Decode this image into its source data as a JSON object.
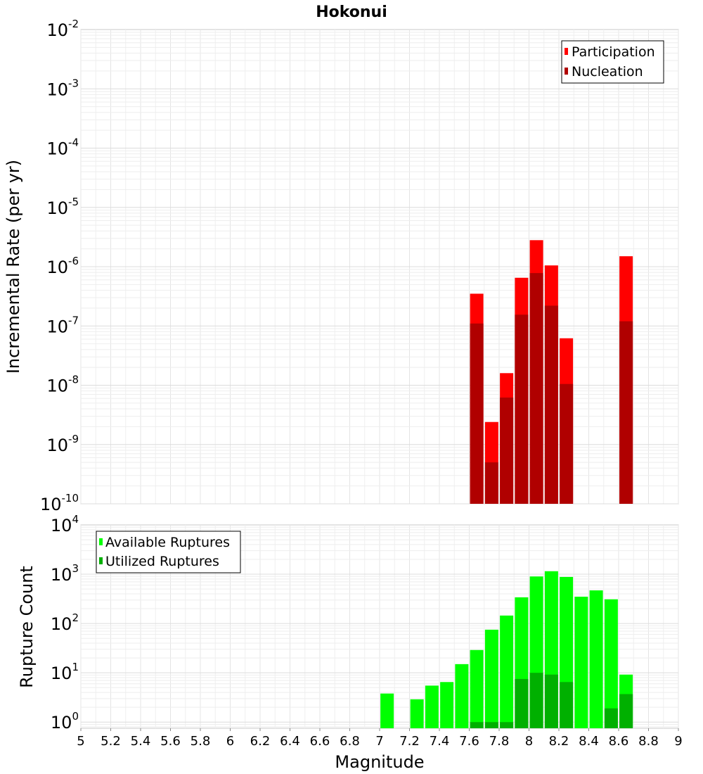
{
  "chart_data": [
    {
      "type": "bar",
      "title": "Hokonui",
      "xlabel": "",
      "ylabel": "Incremental Rate (per yr)",
      "xlim": [
        5,
        9
      ],
      "ylim": [
        1e-10,
        0.01
      ],
      "yscale": "log",
      "grid": true,
      "legend_position": "top-right",
      "y_ticks": [
        {
          "base": "10",
          "exp": "-2"
        },
        {
          "base": "10",
          "exp": "-3"
        },
        {
          "base": "10",
          "exp": "-4"
        },
        {
          "base": "10",
          "exp": "-5"
        },
        {
          "base": "10",
          "exp": "-6"
        },
        {
          "base": "10",
          "exp": "-7"
        },
        {
          "base": "10",
          "exp": "-8"
        },
        {
          "base": "10",
          "exp": "-9"
        },
        {
          "base": "10",
          "exp": "-10"
        }
      ],
      "x": [
        7.65,
        7.75,
        7.85,
        7.95,
        8.05,
        8.15,
        8.25,
        8.65
      ],
      "series": [
        {
          "name": "Participation",
          "color": "#ff0000",
          "values": [
            3.5e-07,
            2.4e-09,
            1.6e-08,
            6.5e-07,
            2.8e-06,
            1.05e-06,
            6.2e-08,
            1.5e-06
          ]
        },
        {
          "name": "Nucleation",
          "color": "#b00000",
          "values": [
            1.1e-07,
            5e-10,
            6.2e-09,
            1.55e-07,
            7.8e-07,
            2.2e-07,
            1.05e-08,
            1.2e-07
          ]
        }
      ]
    },
    {
      "type": "bar",
      "title": "",
      "xlabel": "Magnitude",
      "ylabel": "Rupture Count",
      "xlim": [
        5,
        9
      ],
      "ylim": [
        0.75,
        10000
      ],
      "yscale": "log",
      "grid": true,
      "legend_position": "top-left",
      "y_ticks": [
        {
          "value": 10000,
          "base": "10",
          "exp": "4"
        },
        {
          "value": 1000,
          "base": "10",
          "exp": "3"
        },
        {
          "value": 100,
          "base": "10",
          "exp": "2"
        },
        {
          "value": 10,
          "base": "10",
          "exp": "1"
        },
        {
          "value": 1,
          "base": "10",
          "exp": "0"
        }
      ],
      "x_ticks": [
        "5",
        "5.2",
        "5.4",
        "5.6",
        "5.8",
        "6",
        "6.2",
        "6.4",
        "6.6",
        "6.8",
        "7",
        "7.2",
        "7.4",
        "7.6",
        "7.8",
        "8",
        "8.2",
        "8.4",
        "8.6",
        "8.8",
        "9"
      ],
      "x": [
        7.05,
        7.25,
        7.35,
        7.45,
        7.55,
        7.65,
        7.75,
        7.85,
        7.95,
        8.05,
        8.15,
        8.25,
        8.35,
        8.45,
        8.55,
        8.65
      ],
      "series": [
        {
          "name": "Available Ruptures",
          "color": "#00ff00",
          "values": [
            3.8,
            2.9,
            5.5,
            6.5,
            15,
            29,
            75,
            145,
            340,
            900,
            1150,
            880,
            350,
            470,
            310,
            9.2
          ]
        },
        {
          "name": "Utilized Ruptures",
          "color": "#00b000",
          "values": [
            null,
            null,
            null,
            null,
            null,
            1,
            1,
            1,
            7.5,
            10,
            9.2,
            6.5,
            null,
            null,
            1.9,
            3.7
          ]
        }
      ]
    }
  ]
}
